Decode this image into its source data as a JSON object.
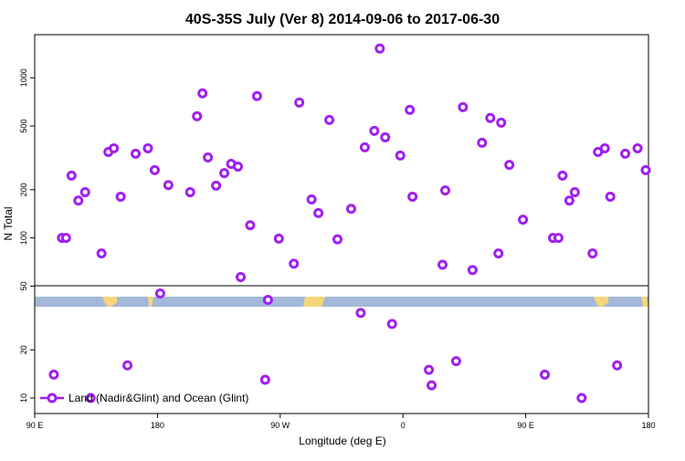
{
  "chart_data": {
    "type": "scatter",
    "title": "40S-35S July (Ver 8)   2014-09-06 to 2017-06-30",
    "x_label": "Longitude (deg E)",
    "y_label": "N Total",
    "x": [
      104,
      110,
      113,
      117,
      122,
      127,
      131,
      139,
      144,
      148,
      153,
      158,
      164,
      173,
      178,
      182,
      188,
      204,
      209,
      213,
      217,
      223,
      229,
      234,
      239,
      241,
      248,
      253,
      259,
      261,
      269,
      280,
      284,
      293,
      298,
      306,
      312,
      322,
      329,
      332,
      339,
      343,
      347,
      352,
      358,
      365,
      367,
      379,
      381,
      389,
      391,
      399,
      404,
      411,
      418,
      424,
      430,
      432,
      438,
      448,
      464,
      470,
      474,
      477,
      482,
      486,
      491,
      499,
      503,
      508,
      512,
      517,
      523,
      532,
      538
    ],
    "series": [
      {
        "name": "Land (Nadir&Glint) and Ocean (Glint)",
        "color": "#a020f0",
        "values": [
          14,
          100,
          100,
          245,
          171,
          193,
          10,
          80,
          344,
          363,
          181,
          16,
          336,
          363,
          265,
          45,
          214,
          193,
          575,
          800,
          318,
          212,
          254,
          290,
          279,
          57,
          120,
          769,
          13,
          41,
          99,
          69,
          701,
          174,
          143,
          546,
          98,
          152,
          34,
          368,
          466,
          1524,
          425,
          29,
          327,
          631,
          181,
          15,
          12,
          68,
          198,
          17,
          656,
          63,
          393,
          561,
          80,
          525,
          286,
          130,
          14,
          100,
          100,
          245,
          171,
          193,
          10,
          80,
          344,
          363,
          181,
          16,
          336,
          363,
          265
        ]
      }
    ],
    "xlim": [
      90,
      540
    ],
    "xticks": [
      {
        "value": 90,
        "label": "90 E"
      },
      180,
      {
        "value": 270,
        "label": "90 W"
      },
      {
        "value": 360,
        "label": "0"
      },
      {
        "value": 450,
        "label": "90 E"
      },
      {
        "value": 540,
        "label": "180"
      }
    ],
    "ylim": [
      8,
      1860
    ],
    "yticks": [
      10,
      20,
      50,
      100,
      200,
      500,
      1000
    ],
    "ylog": true,
    "legend": "bottom-left"
  }
}
